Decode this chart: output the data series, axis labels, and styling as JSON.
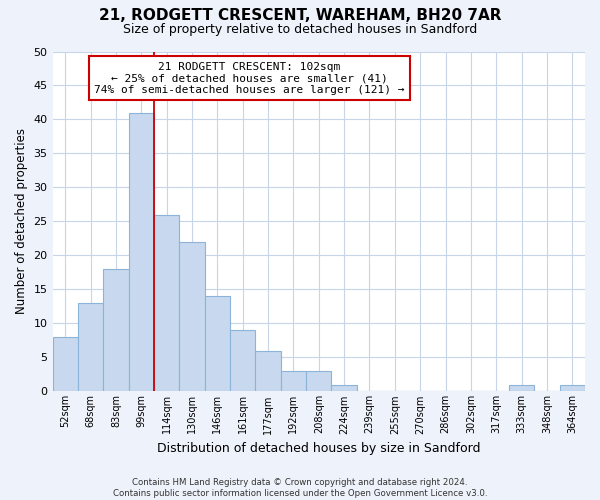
{
  "title": "21, RODGETT CRESCENT, WAREHAM, BH20 7AR",
  "subtitle": "Size of property relative to detached houses in Sandford",
  "xlabel": "Distribution of detached houses by size in Sandford",
  "ylabel": "Number of detached properties",
  "bin_labels": [
    "52sqm",
    "68sqm",
    "83sqm",
    "99sqm",
    "114sqm",
    "130sqm",
    "146sqm",
    "161sqm",
    "177sqm",
    "192sqm",
    "208sqm",
    "224sqm",
    "239sqm",
    "255sqm",
    "270sqm",
    "286sqm",
    "302sqm",
    "317sqm",
    "333sqm",
    "348sqm",
    "364sqm"
  ],
  "bin_values": [
    8,
    13,
    18,
    41,
    26,
    22,
    14,
    9,
    6,
    3,
    3,
    1,
    0,
    0,
    0,
    0,
    0,
    0,
    1,
    0,
    1
  ],
  "bar_color": "#c8d8ee",
  "bar_edge_color": "#8cb4d8",
  "vline_color": "#cc0000",
  "vline_x_index": 3.5,
  "annotation_line1": "21 RODGETT CRESCENT: 102sqm",
  "annotation_line2": "← 25% of detached houses are smaller (41)",
  "annotation_line3": "74% of semi-detached houses are larger (121) →",
  "annotation_box_color": "#ffffff",
  "annotation_box_edge": "#cc0000",
  "ylim": [
    0,
    50
  ],
  "yticks": [
    0,
    5,
    10,
    15,
    20,
    25,
    30,
    35,
    40,
    45,
    50
  ],
  "footer_text": "Contains HM Land Registry data © Crown copyright and database right 2024.\nContains public sector information licensed under the Open Government Licence v3.0.",
  "bg_color": "#eef2fa",
  "plot_bg_color": "#ffffff",
  "grid_color": "#c8d4e8"
}
